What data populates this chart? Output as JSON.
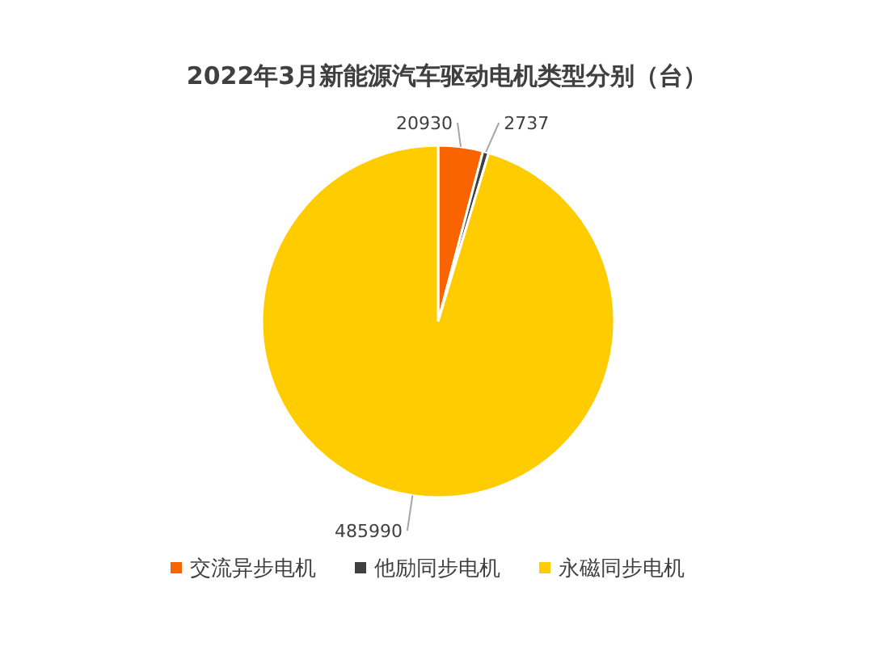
{
  "chart_data": {
    "type": "pie",
    "title": "2022年3月新能源汽车驱动电机类型分别（台）",
    "categories": [
      "交流异步电机",
      "他励同步电机",
      "永磁同步电机"
    ],
    "values": [
      20930,
      2737,
      485990
    ],
    "colors": [
      "#fa6400",
      "#404040",
      "#ffcc00"
    ],
    "data_labels": true,
    "legend": "bottom"
  }
}
